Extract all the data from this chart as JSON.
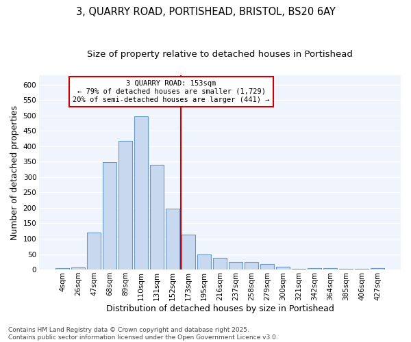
{
  "title_line1": "3, QUARRY ROAD, PORTISHEAD, BRISTOL, BS20 6AY",
  "title_line2": "Size of property relative to detached houses in Portishead",
  "xlabel": "Distribution of detached houses by size in Portishead",
  "ylabel": "Number of detached properties",
  "bar_labels": [
    "4sqm",
    "26sqm",
    "47sqm",
    "68sqm",
    "89sqm",
    "110sqm",
    "131sqm",
    "152sqm",
    "173sqm",
    "195sqm",
    "216sqm",
    "237sqm",
    "258sqm",
    "279sqm",
    "300sqm",
    "321sqm",
    "342sqm",
    "364sqm",
    "385sqm",
    "406sqm",
    "427sqm"
  ],
  "bar_values": [
    5,
    7,
    120,
    348,
    417,
    497,
    340,
    197,
    113,
    50,
    37,
    25,
    25,
    18,
    10,
    3,
    5,
    4,
    3,
    3,
    5
  ],
  "bar_color": "#c8d8ee",
  "bar_edge_color": "#6699cc",
  "background_color": "#ffffff",
  "plot_bg_color": "#f0f4fc",
  "grid_color": "#ffffff",
  "annotation_text": "3 QUARRY ROAD: 153sqm\n← 79% of detached houses are smaller (1,729)\n20% of semi-detached houses are larger (441) →",
  "vline_x_index": 7.5,
  "vline_color": "#cc0000",
  "annotation_box_color": "#ffffff",
  "annotation_box_edge": "#cc0000",
  "ylim": [
    0,
    630
  ],
  "yticks": [
    0,
    50,
    100,
    150,
    200,
    250,
    300,
    350,
    400,
    450,
    500,
    550,
    600
  ],
  "footer_line1": "Contains HM Land Registry data © Crown copyright and database right 2025.",
  "footer_line2": "Contains public sector information licensed under the Open Government Licence v3.0.",
  "title_fontsize": 10.5,
  "subtitle_fontsize": 9.5,
  "axis_label_fontsize": 9,
  "tick_fontsize": 7.5,
  "annotation_fontsize": 7.5,
  "footer_fontsize": 6.5
}
